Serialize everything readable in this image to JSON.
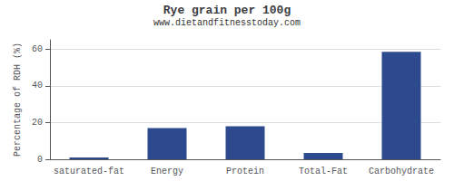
{
  "chart_data": {
    "type": "bar",
    "title": "Rye grain per 100g",
    "subtitle": "www.dietandfitnesstoday.com",
    "categories": [
      "saturated-fat",
      "Energy",
      "Protein",
      "Total-Fat",
      "Carbohydrate"
    ],
    "values": [
      1.0,
      17.0,
      18.0,
      3.5,
      58.5
    ],
    "color": "#2e4a8e",
    "ylabel": "Percentage of RDH (%)",
    "ylim": [
      0,
      65
    ],
    "yticks": [
      0,
      20,
      40,
      60
    ],
    "grid": true
  }
}
